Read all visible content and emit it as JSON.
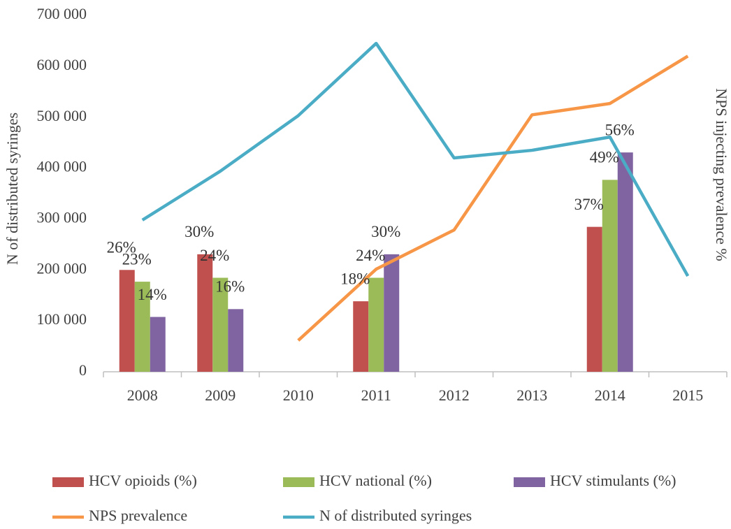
{
  "chart_data": {
    "type": "bar",
    "categories": [
      "2008",
      "2009",
      "2010",
      "2011",
      "2012",
      "2013",
      "2014",
      "2015"
    ],
    "y_label": "N of distributed syringes",
    "y2_label": "NPS injecting prevalence %",
    "ylim": [
      0,
      700000
    ],
    "yticks": [
      {
        "value": 0,
        "label": "0"
      },
      {
        "value": 100000,
        "label": "100 000"
      },
      {
        "value": 200000,
        "label": "200 000"
      },
      {
        "value": 300000,
        "label": "300 000"
      },
      {
        "value": 400000,
        "label": "400 000"
      },
      {
        "value": 500000,
        "label": "500 000"
      },
      {
        "value": 600000,
        "label": "600 000"
      },
      {
        "value": 700000,
        "label": "700 000"
      }
    ],
    "y2lim": [
      0,
      91
    ],
    "series": [
      {
        "name": "HCV opioids (%)",
        "type": "bar",
        "axis": "y2",
        "color": "#c0504d",
        "values": [
          26,
          30,
          null,
          18,
          null,
          null,
          37,
          null
        ],
        "value_labels": [
          "26%",
          "30%",
          null,
          "18%",
          null,
          null,
          "37%",
          null
        ]
      },
      {
        "name": "HCV national (%)",
        "type": "bar",
        "axis": "y2",
        "color": "#9bbb59",
        "values": [
          23,
          24,
          null,
          24,
          null,
          null,
          49,
          null
        ],
        "value_labels": [
          "23%",
          "24%",
          null,
          "24%",
          null,
          null,
          "49%",
          null
        ]
      },
      {
        "name": "HCV stimulants (%)",
        "type": "bar",
        "axis": "y2",
        "color": "#8064a2",
        "values": [
          14,
          16,
          null,
          30,
          null,
          null,
          56,
          null
        ],
        "value_labels": [
          "14%",
          "16%",
          null,
          "30%",
          null,
          null,
          "56%",
          null
        ]
      },
      {
        "name": "NPS prevalence",
        "type": "line",
        "axis": "y2",
        "color": "#f79646",
        "values": [
          null,
          null,
          8,
          26.2,
          36.2,
          65.6,
          68.5,
          80.6
        ]
      },
      {
        "name": "N of distributed syringes",
        "type": "line",
        "color": "#4bacc6",
        "values": [
          298000,
          394000,
          503000,
          645000,
          420000,
          435000,
          461000,
          188000
        ]
      }
    ]
  }
}
